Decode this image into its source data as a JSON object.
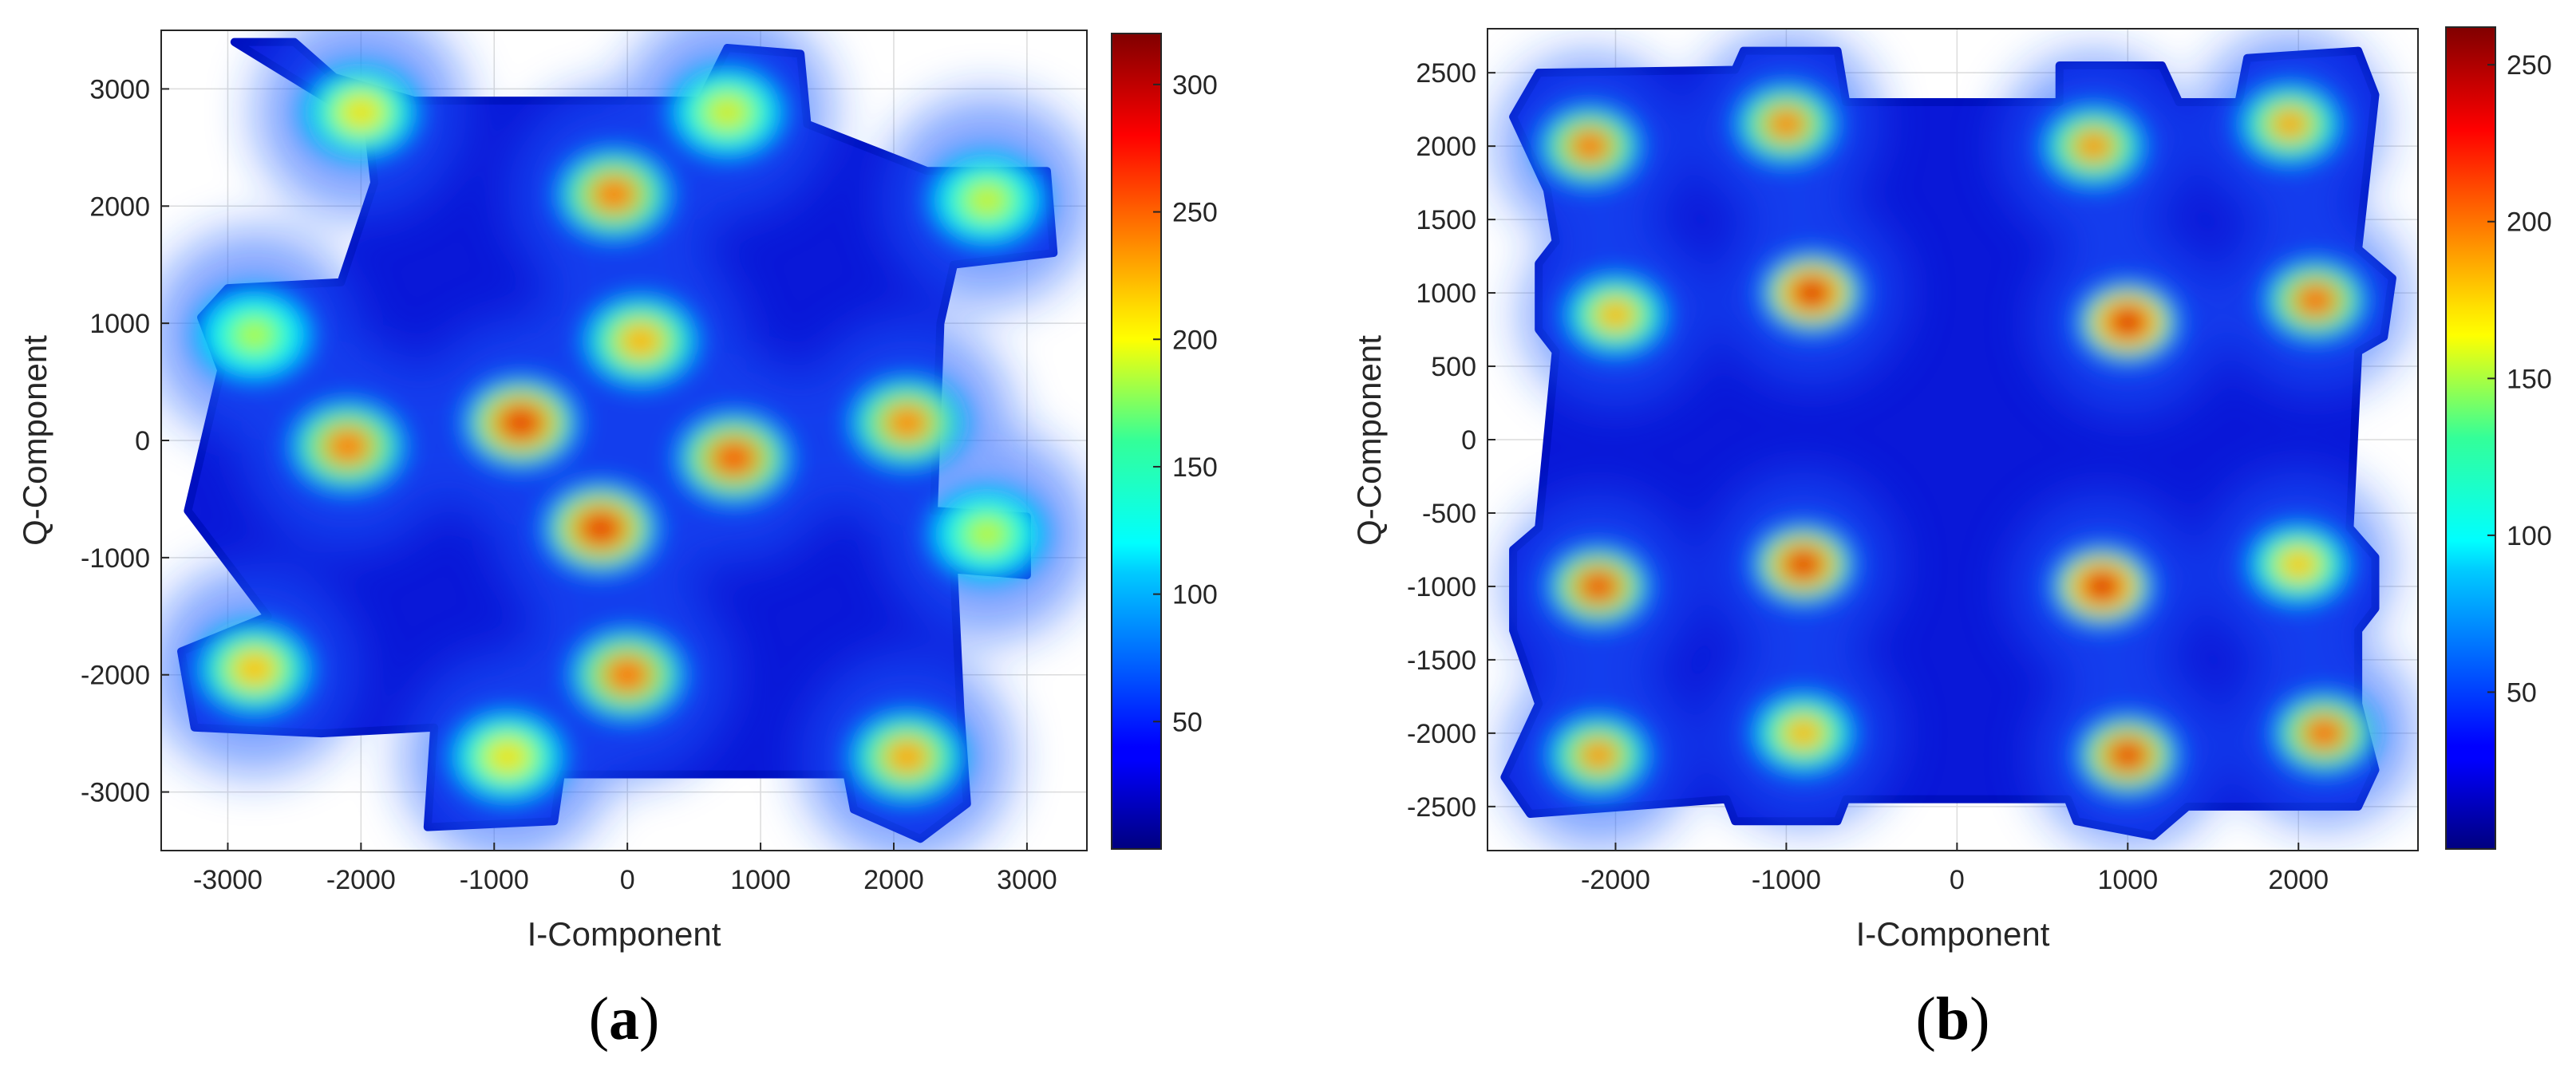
{
  "colormap_name": "jet",
  "panels": [
    {
      "label": "(a)",
      "label_inner": "a"
    },
    {
      "label": "(b)",
      "label_inner": "b"
    }
  ],
  "chart_data": [
    {
      "type": "heatmap",
      "title": "",
      "xlabel": "I-Component",
      "ylabel": "Q-Component",
      "xlim": [
        -3500,
        3450
      ],
      "ylim": [
        -3500,
        3500
      ],
      "xticks": [
        -3000,
        -2000,
        -1000,
        0,
        1000,
        2000,
        3000
      ],
      "yticks": [
        -3000,
        -2000,
        -1000,
        0,
        1000,
        2000,
        3000
      ],
      "xtick_labels": [
        "-3000",
        "-2000",
        "-1000",
        "0",
        "1000",
        "2000",
        "3000"
      ],
      "ytick_labels": [
        "-3000",
        "-2000",
        "-1000",
        "0",
        "1000",
        "2000",
        "3000"
      ],
      "grid": true,
      "colorbar": {
        "range": [
          0,
          320
        ],
        "ticks": [
          50,
          100,
          150,
          200,
          250,
          300
        ],
        "tick_labels": [
          "50",
          "100",
          "150",
          "200",
          "250",
          "300"
        ],
        "colormap": "jet"
      },
      "cluster_points": [
        {
          "i": -2000,
          "q": 2800,
          "peak": 230
        },
        {
          "i": 750,
          "q": 2800,
          "peak": 220
        },
        {
          "i": 2700,
          "q": 2050,
          "peak": 215
        },
        {
          "i": -100,
          "q": 2100,
          "peak": 270
        },
        {
          "i": -2800,
          "q": 900,
          "peak": 205
        },
        {
          "i": 100,
          "q": 850,
          "peak": 250
        },
        {
          "i": -800,
          "q": 150,
          "peak": 300
        },
        {
          "i": -2100,
          "q": -50,
          "peak": 270
        },
        {
          "i": 800,
          "q": -150,
          "peak": 285
        },
        {
          "i": 2100,
          "q": 150,
          "peak": 265
        },
        {
          "i": -200,
          "q": -750,
          "peak": 300
        },
        {
          "i": 2700,
          "q": -800,
          "peak": 210
        },
        {
          "i": -2800,
          "q": -1950,
          "peak": 245
        },
        {
          "i": 0,
          "q": -2000,
          "peak": 275
        },
        {
          "i": -900,
          "q": -2700,
          "peak": 230
        },
        {
          "i": 2100,
          "q": -2700,
          "peak": 255
        }
      ],
      "support_outline": [
        [
          -2950,
          3400
        ],
        [
          -2500,
          3400
        ],
        [
          -2200,
          3100
        ],
        [
          -1600,
          2900
        ],
        [
          550,
          2900
        ],
        [
          750,
          3350
        ],
        [
          1300,
          3300
        ],
        [
          1350,
          2700
        ],
        [
          2250,
          2300
        ],
        [
          3150,
          2300
        ],
        [
          3200,
          1600
        ],
        [
          2450,
          1500
        ],
        [
          2350,
          1000
        ],
        [
          2300,
          -600
        ],
        [
          3000,
          -650
        ],
        [
          3000,
          -1150
        ],
        [
          2450,
          -1100
        ],
        [
          2500,
          -2300
        ],
        [
          2550,
          -3100
        ],
        [
          2200,
          -3400
        ],
        [
          1700,
          -3150
        ],
        [
          1650,
          -2850
        ],
        [
          -500,
          -2850
        ],
        [
          -550,
          -3250
        ],
        [
          -1500,
          -3300
        ],
        [
          -1450,
          -2450
        ],
        [
          -2300,
          -2500
        ],
        [
          -3250,
          -2450
        ],
        [
          -3350,
          -1800
        ],
        [
          -2700,
          -1500
        ],
        [
          -3300,
          -600
        ],
        [
          -3050,
          600
        ],
        [
          -3200,
          1050
        ],
        [
          -3000,
          1300
        ],
        [
          -2150,
          1350
        ],
        [
          -1900,
          2200
        ],
        [
          -1950,
          2700
        ]
      ]
    },
    {
      "type": "heatmap",
      "title": "",
      "xlabel": "I-Component",
      "ylabel": "Q-Component",
      "xlim": [
        -2750,
        2700
      ],
      "ylim": [
        -2800,
        2800
      ],
      "xticks": [
        -2000,
        -1000,
        0,
        1000,
        2000
      ],
      "yticks": [
        -2500,
        -2000,
        -1500,
        -1000,
        -500,
        0,
        500,
        1000,
        1500,
        2000,
        2500
      ],
      "xtick_labels": [
        "-2000",
        "-1000",
        "0",
        "1000",
        "2000"
      ],
      "ytick_labels": [
        "-2500",
        "-2000",
        "-1500",
        "-1000",
        "-500",
        "0",
        "500",
        "1000",
        "1500",
        "2000",
        "2500"
      ],
      "grid": true,
      "colorbar": {
        "range": [
          0,
          262
        ],
        "ticks": [
          50,
          100,
          150,
          200,
          250
        ],
        "tick_labels": [
          "50",
          "100",
          "150",
          "200",
          "250"
        ],
        "colormap": "jet"
      },
      "cluster_points": [
        {
          "i": -2150,
          "q": 2000,
          "peak": 225
        },
        {
          "i": -1000,
          "q": 2150,
          "peak": 220
        },
        {
          "i": 800,
          "q": 2000,
          "peak": 215
        },
        {
          "i": 1950,
          "q": 2150,
          "peak": 210
        },
        {
          "i": -2000,
          "q": 850,
          "peak": 205
        },
        {
          "i": -850,
          "q": 1000,
          "peak": 255
        },
        {
          "i": 1000,
          "q": 800,
          "peak": 258
        },
        {
          "i": 2100,
          "q": 950,
          "peak": 230
        },
        {
          "i": -2100,
          "q": -1000,
          "peak": 240
        },
        {
          "i": -900,
          "q": -850,
          "peak": 250
        },
        {
          "i": 850,
          "q": -1000,
          "peak": 258
        },
        {
          "i": 2000,
          "q": -850,
          "peak": 200
        },
        {
          "i": -2100,
          "q": -2150,
          "peak": 215
        },
        {
          "i": -900,
          "q": -2000,
          "peak": 205
        },
        {
          "i": 1000,
          "q": -2150,
          "peak": 245
        },
        {
          "i": 2150,
          "q": -2000,
          "peak": 230
        }
      ],
      "support_outline": [
        [
          -2450,
          2500
        ],
        [
          -1300,
          2520
        ],
        [
          -1250,
          2650
        ],
        [
          -700,
          2650
        ],
        [
          -650,
          2300
        ],
        [
          600,
          2300
        ],
        [
          600,
          2550
        ],
        [
          1200,
          2550
        ],
        [
          1300,
          2300
        ],
        [
          1650,
          2300
        ],
        [
          1700,
          2600
        ],
        [
          2350,
          2650
        ],
        [
          2450,
          2350
        ],
        [
          2350,
          1300
        ],
        [
          2550,
          1100
        ],
        [
          2500,
          700
        ],
        [
          2350,
          600
        ],
        [
          2300,
          -600
        ],
        [
          2450,
          -800
        ],
        [
          2450,
          -1150
        ],
        [
          2350,
          -1300
        ],
        [
          2350,
          -1800
        ],
        [
          2450,
          -2250
        ],
        [
          2350,
          -2500
        ],
        [
          1350,
          -2500
        ],
        [
          1150,
          -2700
        ],
        [
          700,
          -2600
        ],
        [
          650,
          -2450
        ],
        [
          -650,
          -2450
        ],
        [
          -700,
          -2600
        ],
        [
          -1300,
          -2600
        ],
        [
          -1350,
          -2450
        ],
        [
          -2500,
          -2550
        ],
        [
          -2650,
          -2300
        ],
        [
          -2450,
          -1800
        ],
        [
          -2600,
          -1300
        ],
        [
          -2600,
          -750
        ],
        [
          -2450,
          -600
        ],
        [
          -2350,
          600
        ],
        [
          -2450,
          750
        ],
        [
          -2450,
          1200
        ],
        [
          -2350,
          1350
        ],
        [
          -2400,
          1700
        ],
        [
          -2600,
          2200
        ]
      ]
    }
  ]
}
